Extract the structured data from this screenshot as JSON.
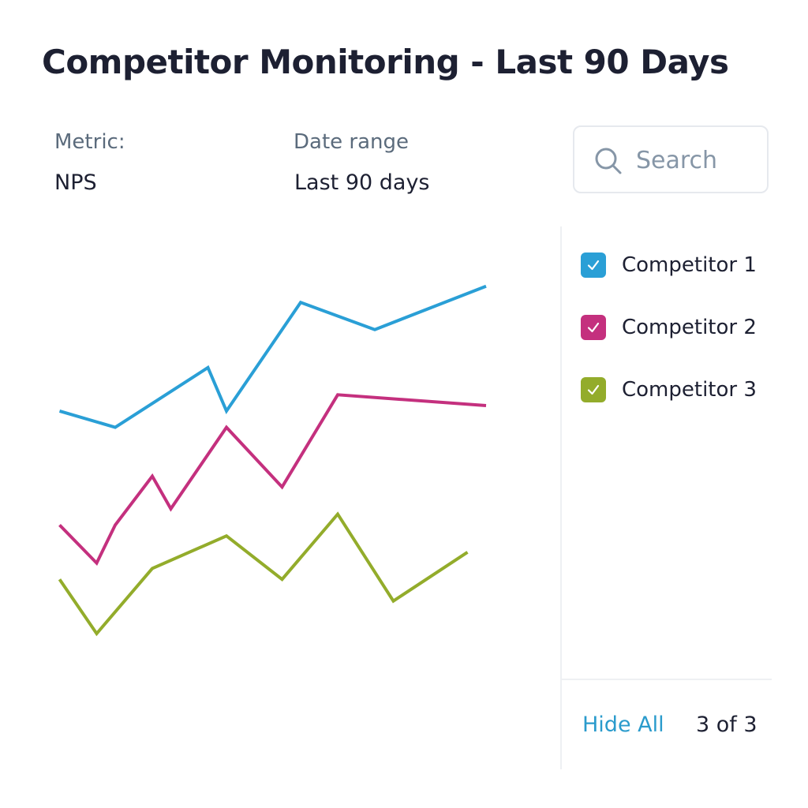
{
  "header": {
    "title": "Competitor Monitoring - Last 90 Days"
  },
  "filters": {
    "metric": {
      "label": "Metric:",
      "value": "NPS"
    },
    "date_range": {
      "label": "Date range",
      "value": "Last 90 days"
    }
  },
  "search": {
    "placeholder": "Search",
    "value": "",
    "icon": "search-icon"
  },
  "legend": {
    "items": [
      {
        "label": "Competitor 1",
        "checked": true,
        "color": "#2a9fd6"
      },
      {
        "label": "Competitor 2",
        "checked": true,
        "color": "#c4307e"
      },
      {
        "label": "Competitor 3",
        "checked": true,
        "color": "#93ac2b"
      }
    ],
    "hide_all_label": "Hide All",
    "count_text": "3 of 3"
  },
  "chart_data": {
    "type": "line",
    "title": "",
    "xlabel": "",
    "ylabel": "",
    "grid": false,
    "axes_visible": false,
    "xlim": [
      0,
      14
    ],
    "ylim": [
      0,
      100
    ],
    "series": [
      {
        "name": "Competitor 1",
        "color": "#2a9fd6",
        "x": [
          0.5,
          2.0,
          4.5,
          5.0,
          7.0,
          9.0,
          12.0
        ],
        "y": [
          66,
          63,
          74,
          66,
          86,
          81,
          89
        ]
      },
      {
        "name": "Competitor 2",
        "color": "#c4307e",
        "x": [
          0.5,
          1.5,
          2.0,
          3.0,
          3.5,
          5.0,
          6.5,
          8.0,
          12.0
        ],
        "y": [
          45,
          38,
          45,
          54,
          48,
          63,
          52,
          69,
          67
        ]
      },
      {
        "name": "Competitor 3",
        "color": "#93ac2b",
        "x": [
          0.5,
          1.5,
          3.0,
          5.0,
          6.5,
          8.0,
          9.5,
          11.5
        ],
        "y": [
          35,
          25,
          37,
          43,
          35,
          47,
          31,
          40
        ]
      }
    ]
  }
}
